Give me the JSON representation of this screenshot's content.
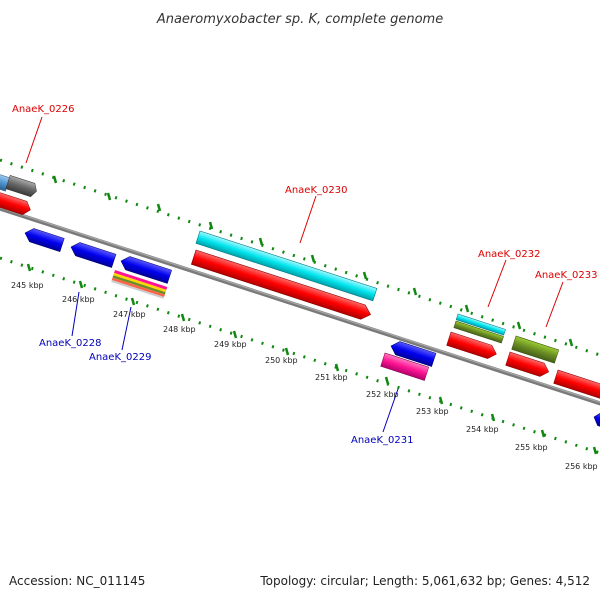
{
  "title": "Anaeromyxobacter sp. K, complete genome",
  "footer": {
    "accession": "Accession: NC_011145",
    "summary": "Topology: circular; Length: 5,061,632 bp; Genes: 4,512"
  },
  "tick_labels": [
    "245 kbp",
    "246 kbp",
    "247 kbp",
    "248 kbp",
    "249 kbp",
    "250 kbp",
    "251 kbp",
    "252 kbp",
    "253 kbp",
    "254 kbp",
    "255 kbp",
    "256 kbp"
  ],
  "gene_labels": [
    {
      "name": "AnaeK_0226",
      "color": "#dd0000"
    },
    {
      "name": "AnaeK_0230",
      "color": "#dd0000"
    },
    {
      "name": "AnaeK_0232",
      "color": "#dd0000"
    },
    {
      "name": "AnaeK_0233",
      "color": "#dd0000"
    },
    {
      "name": "AnaeK_0228",
      "color": "#0000bb"
    },
    {
      "name": "AnaeK_0229",
      "color": "#0000bb"
    },
    {
      "name": "AnaeK_0231",
      "color": "#0000bb"
    }
  ],
  "colors": {
    "backbone": "#888888",
    "tick_marks": "#118811",
    "forward_gene": "#ff0000",
    "reverse_gene": "#0000ee",
    "rna": "#00e5ee",
    "misc": "#6b8e23",
    "pink": "#ff1493",
    "gray": "#666666",
    "light_blue": "#4f94cd"
  }
}
